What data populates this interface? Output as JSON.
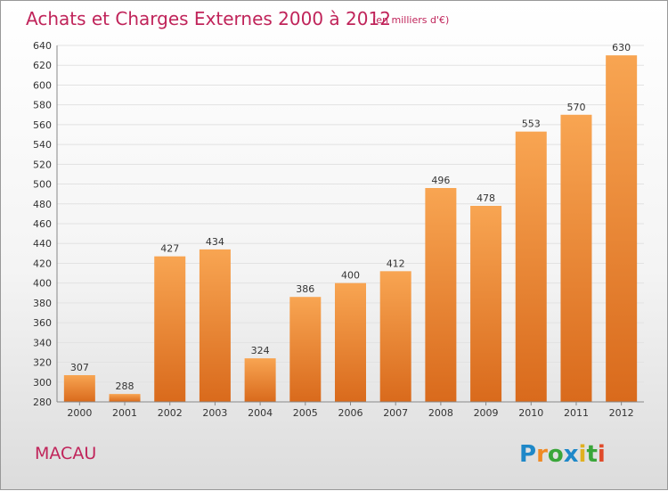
{
  "chart_data": {
    "type": "bar",
    "title": "Achats et Charges Externes 2000 à 2012",
    "subtitle": "(en milliers d'€)",
    "categories": [
      "2000",
      "2001",
      "2002",
      "2003",
      "2004",
      "2005",
      "2006",
      "2007",
      "2008",
      "2009",
      "2010",
      "2011",
      "2012"
    ],
    "values": [
      307,
      288,
      427,
      434,
      324,
      386,
      400,
      412,
      496,
      478,
      553,
      570,
      630
    ],
    "ylim": [
      280,
      640
    ],
    "ytick_step": 20,
    "grid": true,
    "bar_color": "#f0903a"
  },
  "place": "MACAU",
  "logo": {
    "letters": [
      "P",
      "r",
      "o",
      "x",
      "i",
      "t",
      "i"
    ],
    "colors": [
      "#1e88c8",
      "#f08a24",
      "#3aa63a",
      "#1e88c8",
      "#e0b020",
      "#3aa63a",
      "#e04a2a"
    ]
  }
}
